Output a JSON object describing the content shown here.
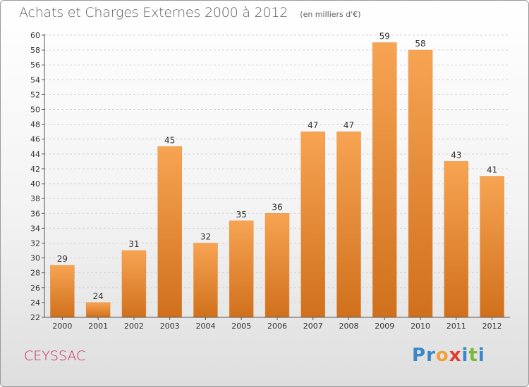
{
  "chart_data": {
    "type": "bar",
    "title": "Achats et Charges Externes 2000 à 2012",
    "subtitle": "(en milliers d'€)",
    "categories": [
      "2000",
      "2001",
      "2002",
      "2003",
      "2004",
      "2005",
      "2006",
      "2007",
      "2008",
      "2009",
      "2010",
      "2011",
      "2012"
    ],
    "values": [
      29,
      24,
      31,
      45,
      32,
      35,
      36,
      47,
      47,
      59,
      58,
      43,
      41
    ],
    "xlabel": "",
    "ylabel": "",
    "ylim": [
      22,
      60
    ],
    "ytick_step": 2,
    "grid": true,
    "legend": "none",
    "bar_color_top": "#f7a453",
    "bar_color_bottom": "#d0701c"
  },
  "footer": {
    "commune": "CEYSSAC",
    "logo_letters": [
      {
        "char": "P",
        "color": "#3a88c8"
      },
      {
        "char": "r",
        "color": "#3a88c8"
      },
      {
        "char": "o",
        "color": "#f2a03a"
      },
      {
        "char": "x",
        "color": "#e23b2c"
      },
      {
        "char": "i",
        "color": "#3a88c8"
      },
      {
        "char": "t",
        "color": "#7cb83a"
      },
      {
        "char": "i",
        "color": "#3a88c8"
      }
    ]
  }
}
